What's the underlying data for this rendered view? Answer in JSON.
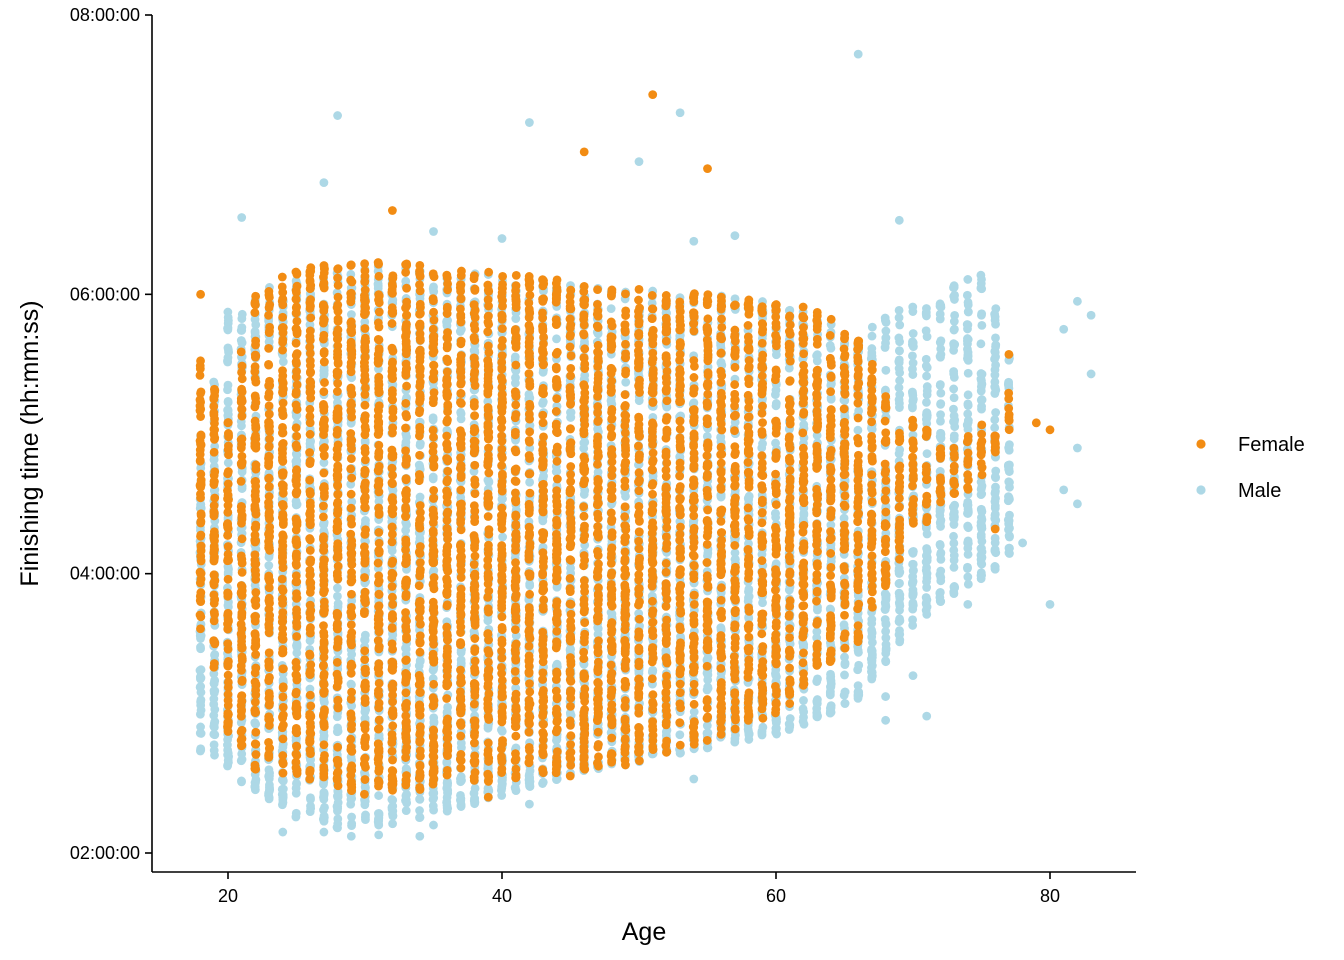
{
  "chart_data": {
    "type": "scatter",
    "title": "",
    "xlabel": "Age",
    "ylabel": "Finishing time (hh:mm:ss)",
    "xlim": [
      15,
      86
    ],
    "ylim_hours": [
      1.87,
      8.0
    ],
    "x_ticks": [
      {
        "value": 20,
        "label": "20"
      },
      {
        "value": 40,
        "label": "40"
      },
      {
        "value": 60,
        "label": "60"
      },
      {
        "value": 80,
        "label": "80"
      }
    ],
    "y_ticks": [
      {
        "value": 2,
        "label": "02:00:00"
      },
      {
        "value": 4,
        "label": "04:00:00"
      },
      {
        "value": 6,
        "label": "06:00:00"
      },
      {
        "value": 8,
        "label": "08:00:00"
      }
    ],
    "grid": false,
    "legend_position": "right",
    "series": [
      {
        "name": "Female",
        "color": "#F28C13",
        "outlier_points": [
          [
            51,
            7.43
          ],
          [
            46,
            7.02
          ],
          [
            55,
            6.9
          ],
          [
            32,
            6.6
          ],
          [
            18,
            6.0
          ],
          [
            80,
            5.03
          ],
          [
            77,
            5.57
          ],
          [
            76,
            4.32
          ],
          [
            79,
            5.08
          ],
          [
            48,
            2.65
          ],
          [
            39,
            2.4
          ],
          [
            46,
            2.73
          ],
          [
            61,
            3.07
          ],
          [
            62,
            3.2
          ],
          [
            20,
            2.87
          ]
        ],
        "band_profile": [
          [
            18,
            3.6,
            5.55
          ],
          [
            20,
            2.88,
            5.2
          ],
          [
            22,
            2.6,
            6.0
          ],
          [
            25,
            2.55,
            6.2
          ],
          [
            30,
            2.42,
            6.25
          ],
          [
            35,
            2.45,
            6.2
          ],
          [
            40,
            2.5,
            6.15
          ],
          [
            45,
            2.55,
            6.1
          ],
          [
            50,
            2.65,
            6.05
          ],
          [
            55,
            2.8,
            6.0
          ],
          [
            60,
            3.0,
            5.95
          ],
          [
            63,
            3.3,
            5.9
          ],
          [
            66,
            3.5,
            5.7
          ],
          [
            68,
            3.9,
            5.3
          ],
          [
            70,
            4.3,
            5.1
          ],
          [
            73,
            4.5,
            4.9
          ],
          [
            75,
            4.7,
            5.1
          ],
          [
            77,
            5.0,
            5.3
          ]
        ]
      },
      {
        "name": "Male",
        "color": "#ADD8E6",
        "outlier_points": [
          [
            66,
            7.72
          ],
          [
            28,
            7.28
          ],
          [
            42,
            7.23
          ],
          [
            53,
            7.3
          ],
          [
            50,
            6.95
          ],
          [
            27,
            6.8
          ],
          [
            21,
            6.55
          ],
          [
            69,
            6.53
          ],
          [
            35,
            6.45
          ],
          [
            40,
            6.4
          ],
          [
            57,
            6.42
          ],
          [
            54,
            6.38
          ],
          [
            83,
            5.85
          ],
          [
            82,
            5.95
          ],
          [
            81,
            5.75
          ],
          [
            83,
            5.43
          ],
          [
            82,
            4.9
          ],
          [
            82,
            4.5
          ],
          [
            81,
            4.6
          ],
          [
            80,
            3.78
          ],
          [
            78,
            4.22
          ],
          [
            77,
            4.15
          ],
          [
            76,
            4.05
          ],
          [
            75,
            4.18
          ],
          [
            74,
            3.78
          ],
          [
            70,
            3.27
          ],
          [
            71,
            2.98
          ],
          [
            68,
            2.95
          ],
          [
            68,
            3.12
          ],
          [
            54,
            2.53
          ],
          [
            24,
            2.15
          ],
          [
            27,
            2.15
          ],
          [
            29,
            2.12
          ],
          [
            31,
            2.13
          ],
          [
            34,
            2.12
          ],
          [
            35,
            2.2
          ],
          [
            42,
            2.35
          ],
          [
            36,
            2.3
          ],
          [
            39,
            2.4
          ],
          [
            31,
            2.2
          ]
        ],
        "band_profile": [
          [
            18,
            2.72,
            5.0
          ],
          [
            20,
            2.6,
            5.9
          ],
          [
            21,
            2.5,
            5.9
          ],
          [
            22,
            2.45,
            6.05
          ],
          [
            25,
            2.25,
            6.1
          ],
          [
            28,
            2.18,
            6.2
          ],
          [
            30,
            2.18,
            6.2
          ],
          [
            33,
            2.22,
            6.2
          ],
          [
            35,
            2.28,
            6.15
          ],
          [
            40,
            2.4,
            6.15
          ],
          [
            45,
            2.55,
            6.1
          ],
          [
            50,
            2.65,
            6.05
          ],
          [
            55,
            2.75,
            6.0
          ],
          [
            60,
            2.85,
            5.95
          ],
          [
            63,
            2.95,
            5.85
          ],
          [
            66,
            3.1,
            5.7
          ],
          [
            69,
            3.5,
            5.9
          ],
          [
            72,
            3.8,
            6.0
          ],
          [
            75,
            3.95,
            6.2
          ],
          [
            77,
            4.1,
            5.6
          ]
        ]
      }
    ]
  }
}
